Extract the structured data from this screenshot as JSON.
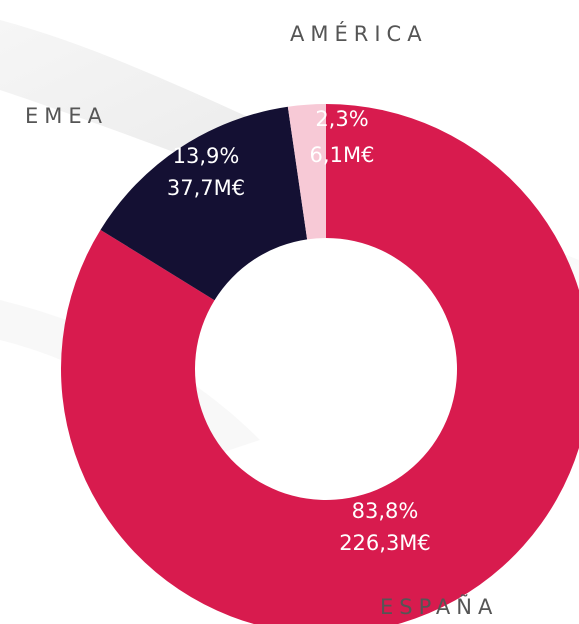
{
  "chart_data": {
    "type": "donut",
    "categories": [
      "ESPAÑA",
      "EMEA",
      "AMÉRICA"
    ],
    "values": [
      83.8,
      13.9,
      2.3
    ],
    "value_labels": [
      "83,8%",
      "13,9%",
      "2,3%"
    ],
    "amounts": [
      226.3,
      37.7,
      6.1
    ],
    "amount_labels": [
      "226,3M€",
      "37,7M€",
      "6,1M€"
    ],
    "colors": [
      "#d81b4e",
      "#141033",
      "#f7c9d6"
    ]
  }
}
